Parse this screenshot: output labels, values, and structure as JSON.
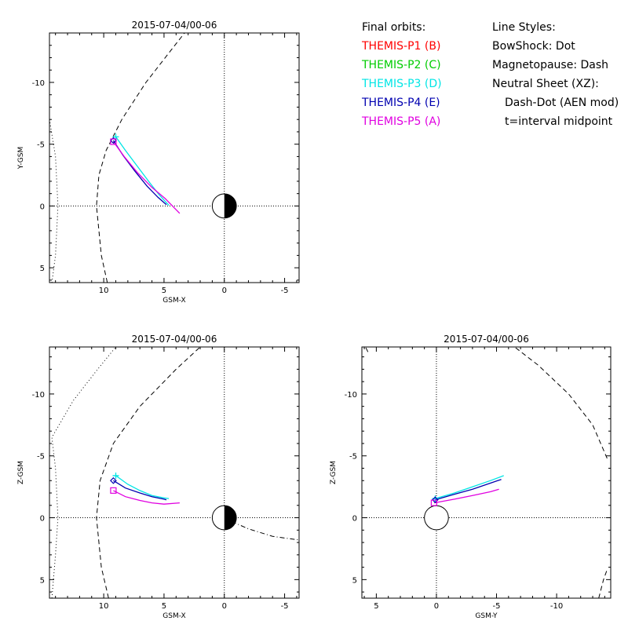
{
  "legend_orbits": {
    "heading": "Final orbits:",
    "items": [
      {
        "label": "THEMIS-P1 (B)",
        "color": "#ff0000"
      },
      {
        "label": "THEMIS-P2 (C)",
        "color": "#00cc00"
      },
      {
        "label": "THEMIS-P3 (D)",
        "color": "#00e5e5"
      },
      {
        "label": "THEMIS-P4 (E)",
        "color": "#0000b0"
      },
      {
        "label": "THEMIS-P5 (A)",
        "color": "#e000e0"
      }
    ]
  },
  "legend_styles": {
    "heading": "Line Styles:",
    "lines": [
      "BowShock: Dot",
      "Magnetopause: Dash",
      "Neutral Sheet (XZ):",
      "Dash-Dot (AEN mod)",
      "t=interval midpoint"
    ]
  },
  "chart_data": [
    {
      "type": "line",
      "title": "2015-07-04/00-06",
      "xlabel": "GSM-X",
      "ylabel": "Y-GSM",
      "xlim": [
        14.5,
        -6.2
      ],
      "ylim": [
        6.2,
        -14
      ],
      "xticks": [
        10,
        5,
        0,
        -5
      ],
      "xtick_labels": [
        "10",
        "5",
        "0",
        "-5"
      ],
      "yticks": [
        5,
        0,
        -5,
        -10
      ],
      "ytick_labels": [
        "5",
        "0",
        "-5",
        "-10"
      ],
      "earth": "half",
      "boundaries": {
        "bowshock": [
          [
            14.3,
            6.2
          ],
          [
            14.0,
            4.0
          ],
          [
            13.8,
            0.0
          ],
          [
            14.0,
            -4.0
          ],
          [
            14.5,
            -7.0
          ],
          [
            15.0,
            -9.5
          ],
          [
            15.8,
            -12.0
          ],
          [
            16.5,
            -14.0
          ]
        ],
        "magnetopause": [
          [
            9.7,
            6.2
          ],
          [
            10.2,
            4.0
          ],
          [
            10.6,
            0.0
          ],
          [
            10.4,
            -2.5
          ],
          [
            9.8,
            -4.5
          ],
          [
            8.5,
            -7.0
          ],
          [
            6.5,
            -10.0
          ],
          [
            4.5,
            -12.5
          ],
          [
            3.3,
            -14.0
          ]
        ]
      },
      "series": [
        {
          "name": "THEMIS-P3 (D)",
          "color": "#00e5e5",
          "x": [
            9.0,
            8.2,
            7.2,
            6.2,
            5.4,
            4.6
          ],
          "y": [
            -5.6,
            -4.5,
            -3.2,
            -1.9,
            -0.9,
            -0.05
          ],
          "end_marker": "plus"
        },
        {
          "name": "THEMIS-P4 (E)",
          "color": "#0000b0",
          "x": [
            9.2,
            8.4,
            7.4,
            6.4,
            5.5,
            4.8
          ],
          "y": [
            -5.3,
            -4.1,
            -2.8,
            -1.6,
            -0.7,
            -0.1
          ],
          "end_marker": "diamond"
        },
        {
          "name": "THEMIS-P5 (A)",
          "color": "#e000e0",
          "x": [
            9.2,
            8.3,
            7.2,
            6.0,
            4.9,
            3.7
          ],
          "y": [
            -5.2,
            -4.0,
            -2.7,
            -1.5,
            -0.6,
            0.6
          ],
          "end_marker": "square"
        }
      ]
    },
    {
      "type": "line",
      "title": "2015-07-04/00-06",
      "xlabel": "GSM-X",
      "ylabel": "Z-GSM",
      "xlim": [
        14.5,
        -6.2
      ],
      "ylim": [
        6.5,
        -13.8
      ],
      "xticks": [
        10,
        5,
        0,
        -5
      ],
      "xtick_labels": [
        "10",
        "5",
        "0",
        "-5"
      ],
      "yticks": [
        5,
        0,
        -5,
        -10
      ],
      "ytick_labels": [
        "5",
        "0",
        "-5",
        "-10"
      ],
      "earth": "half",
      "boundaries": {
        "bowshock": [
          [
            14.3,
            6.5
          ],
          [
            14.0,
            3.0
          ],
          [
            13.8,
            0.0
          ],
          [
            14.0,
            -4.0
          ],
          [
            14.3,
            -6.5
          ],
          [
            12.5,
            -9.5
          ],
          [
            10.5,
            -12.0
          ],
          [
            9.0,
            -13.8
          ]
        ],
        "magnetopause": [
          [
            9.6,
            6.5
          ],
          [
            10.2,
            4.0
          ],
          [
            10.6,
            0.0
          ],
          [
            10.3,
            -3.0
          ],
          [
            9.2,
            -6.0
          ],
          [
            7.0,
            -9.0
          ],
          [
            4.0,
            -12.0
          ],
          [
            2.0,
            -13.8
          ]
        ],
        "neutral_sheet": [
          [
            -0.6,
            0.3
          ],
          [
            -2.0,
            0.9
          ],
          [
            -4.0,
            1.5
          ],
          [
            -6.2,
            1.8
          ]
        ]
      },
      "series": [
        {
          "name": "THEMIS-P3 (D)",
          "color": "#00e5e5",
          "x": [
            9.0,
            8.0,
            7.0,
            6.0,
            5.0,
            4.6
          ],
          "y": [
            -3.4,
            -2.7,
            -2.2,
            -1.8,
            -1.6,
            -1.55
          ],
          "end_marker": "plus"
        },
        {
          "name": "THEMIS-P4 (E)",
          "color": "#0000b0",
          "x": [
            9.2,
            8.2,
            7.0,
            6.0,
            5.0,
            4.8
          ],
          "y": [
            -3.0,
            -2.4,
            -2.0,
            -1.7,
            -1.5,
            -1.45
          ],
          "end_marker": "diamond"
        },
        {
          "name": "THEMIS-P5 (A)",
          "color": "#e000e0",
          "x": [
            9.2,
            8.2,
            7.0,
            6.0,
            5.0,
            3.7
          ],
          "y": [
            -2.2,
            -1.7,
            -1.4,
            -1.2,
            -1.1,
            -1.2
          ],
          "end_marker": "square"
        }
      ]
    },
    {
      "type": "line",
      "title": "2015-07-04/00-06",
      "xlabel": "GSM-Y",
      "ylabel": "Z-GSM",
      "xlim": [
        6.2,
        -14.5
      ],
      "ylim": [
        6.5,
        -13.8
      ],
      "xticks": [
        5,
        0,
        -5,
        -10
      ],
      "xtick_labels": [
        "5",
        "0",
        "-5",
        "-10"
      ],
      "yticks": [
        5,
        0,
        -5,
        -10
      ],
      "ytick_labels": [
        "5",
        "0",
        "-5",
        "-10"
      ],
      "earth": "full",
      "boundaries": {
        "magnetopause": [
          [
            -13.5,
            6.5
          ],
          [
            -13.9,
            5.0
          ],
          [
            -14.2,
            4.2
          ]
        ],
        "magnetopause_b": [
          [
            -14.2,
            -4.8
          ],
          [
            -13.0,
            -7.5
          ],
          [
            -11.0,
            -10.0
          ],
          [
            -8.5,
            -12.3
          ],
          [
            -6.5,
            -13.8
          ]
        ],
        "magnetopause_c": [
          [
            5.7,
            -13.4
          ],
          [
            5.9,
            -13.8
          ]
        ]
      },
      "series": [
        {
          "name": "THEMIS-P3 (D)",
          "color": "#00e5e5",
          "x": [
            0.1,
            -1.5,
            -3.0,
            -4.5,
            -5.6
          ],
          "y": [
            -1.55,
            -2.0,
            -2.5,
            -3.0,
            -3.4
          ],
          "end_marker": "plus"
        },
        {
          "name": "THEMIS-P4 (E)",
          "color": "#0000b0",
          "x": [
            0.1,
            -1.5,
            -3.0,
            -4.5,
            -5.4
          ],
          "y": [
            -1.45,
            -1.9,
            -2.3,
            -2.8,
            -3.1
          ],
          "end_marker": "diamond"
        },
        {
          "name": "THEMIS-P5 (A)",
          "color": "#e000e0",
          "x": [
            0.2,
            -1.5,
            -3.0,
            -4.5,
            -5.2
          ],
          "y": [
            -1.2,
            -1.5,
            -1.8,
            -2.1,
            -2.3
          ],
          "end_marker": "square"
        }
      ]
    }
  ]
}
